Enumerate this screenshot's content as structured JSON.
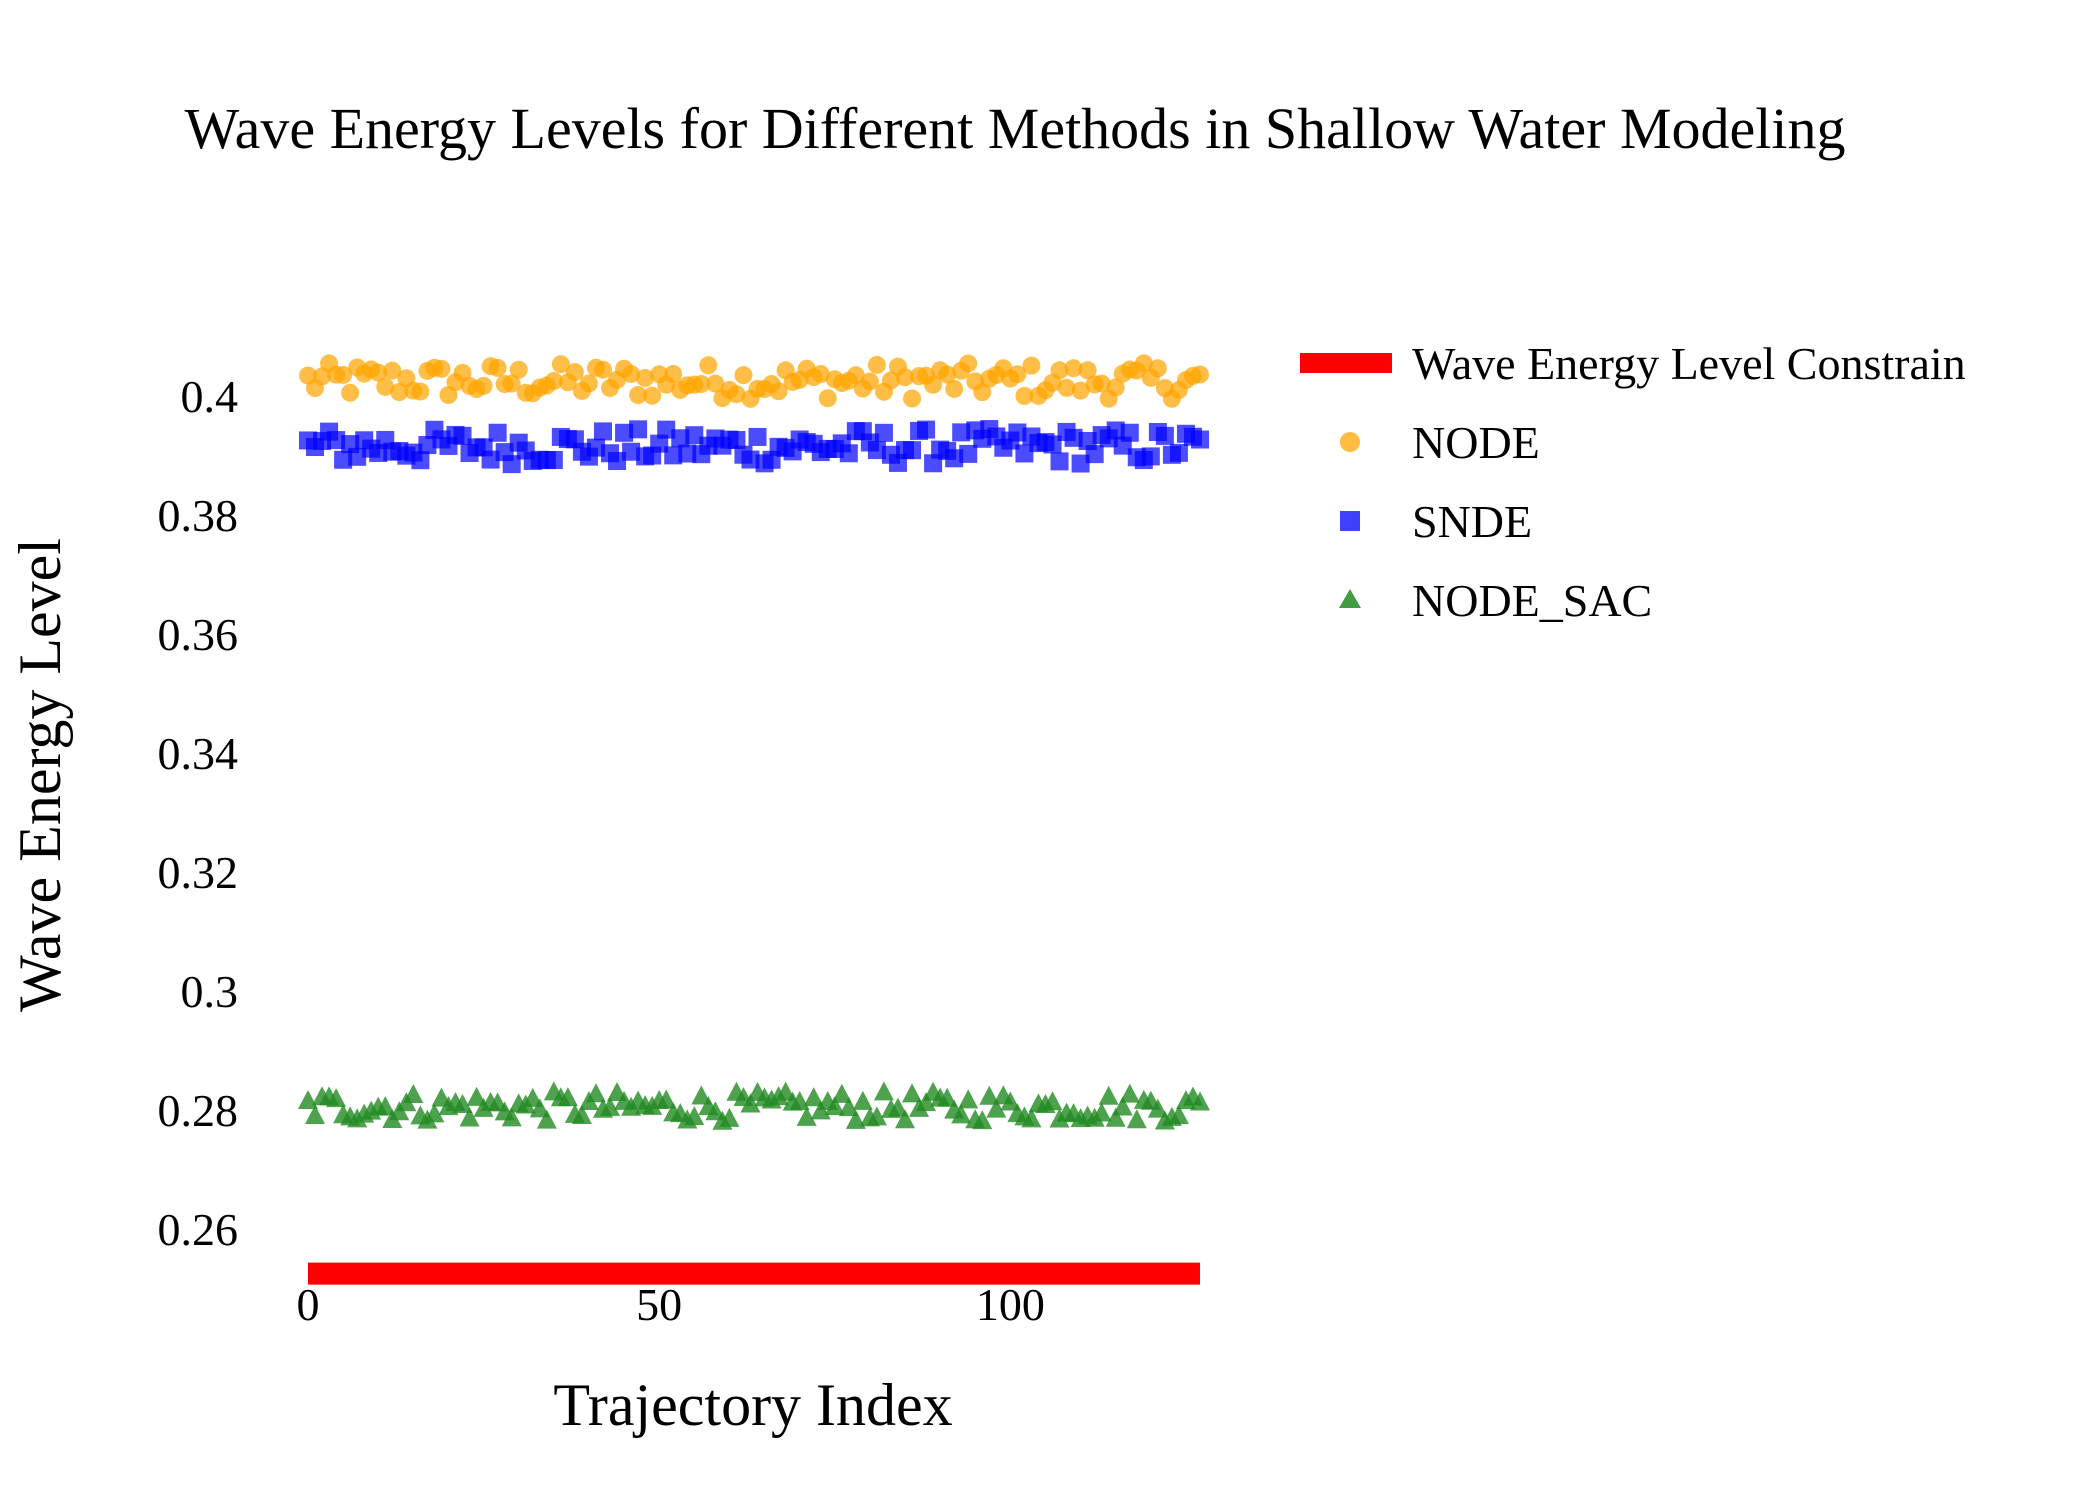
{
  "chart_data": {
    "type": "scatter",
    "title": "Wave Energy Levels for Different Methods in Shallow Water Modeling",
    "xlabel": "Trajectory Index",
    "ylabel": "Wave Energy Level",
    "xlim": [
      -5,
      132
    ],
    "ylim": [
      0.245,
      0.412
    ],
    "x_ticks": [
      0,
      50,
      100
    ],
    "x_tick_labels": [
      "0",
      "50",
      "100"
    ],
    "y_ticks": [
      0.26,
      0.28,
      0.3,
      0.32,
      0.34,
      0.36,
      0.38,
      0.4
    ],
    "y_tick_labels": [
      "0.26",
      "0.28",
      "0.3",
      "0.32",
      "0.34",
      "0.36",
      "0.38",
      "0.4"
    ],
    "grid": false,
    "legend_position": "top-right-outside",
    "n_points": 128,
    "series": [
      {
        "name": "Wave Energy Level Constrain",
        "kind": "line",
        "color": "#ff0000",
        "x": [
          0,
          127
        ],
        "values": [
          0.2525,
          0.2525
        ]
      },
      {
        "name": "NODE",
        "kind": "marker",
        "marker": "circle",
        "color": "#ffa500",
        "mean": 0.4025,
        "range": [
          0.3995,
          0.4055
        ]
      },
      {
        "name": "SNDE",
        "kind": "marker",
        "marker": "square",
        "color": "#0000ff",
        "mean": 0.3915,
        "range": [
          0.3885,
          0.3945
        ]
      },
      {
        "name": "NODE_SAC",
        "kind": "marker",
        "marker": "triangle",
        "color": "#228b22",
        "mean": 0.2805,
        "range": [
          0.278,
          0.283
        ]
      }
    ]
  }
}
